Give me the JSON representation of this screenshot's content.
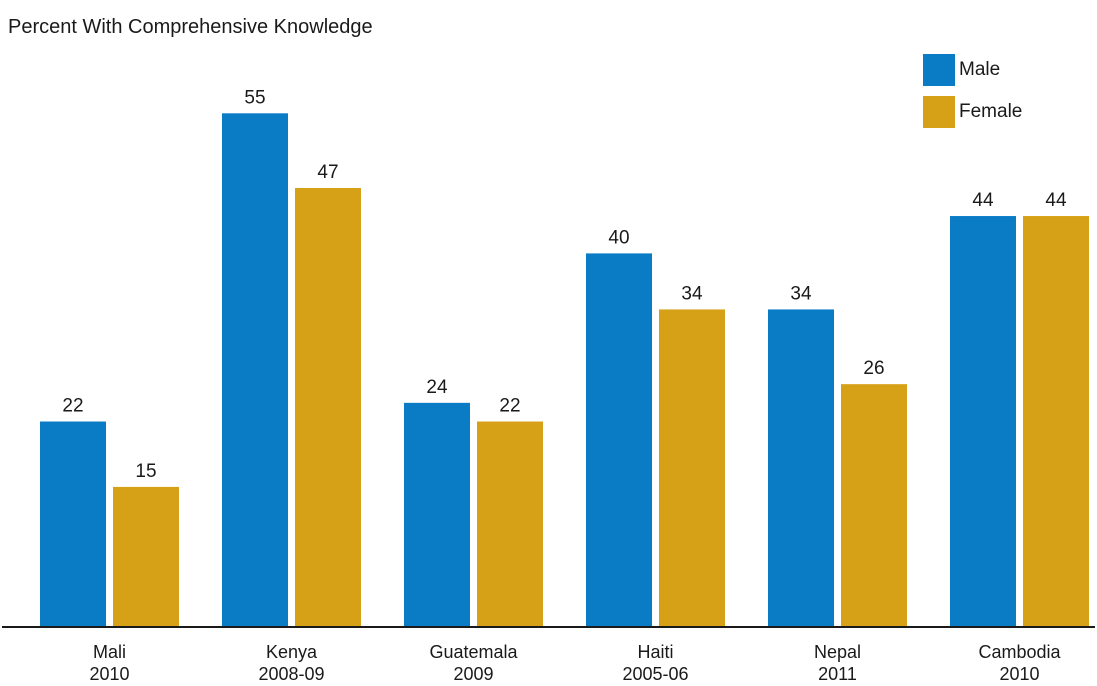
{
  "chart_data": {
    "type": "bar",
    "title": "Percent With Comprehensive Knowledge",
    "xlabel": "",
    "ylabel": "",
    "ylim": [
      0,
      60
    ],
    "categories": [
      {
        "name": "Mali",
        "year": "2010"
      },
      {
        "name": "Kenya",
        "year": "2008-09"
      },
      {
        "name": "Guatemala",
        "year": "2009"
      },
      {
        "name": "Haiti",
        "year": "2005-06"
      },
      {
        "name": "Nepal",
        "year": "2011"
      },
      {
        "name": "Cambodia",
        "year": "2010"
      }
    ],
    "series": [
      {
        "name": "Male",
        "color": "#0a7cc6",
        "values": [
          22,
          55,
          24,
          40,
          34,
          44
        ]
      },
      {
        "name": "Female",
        "color": "#d6a116",
        "values": [
          15,
          47,
          22,
          34,
          26,
          44
        ]
      }
    ],
    "legend_position": "top-right",
    "grid": false,
    "data_labels": true
  }
}
